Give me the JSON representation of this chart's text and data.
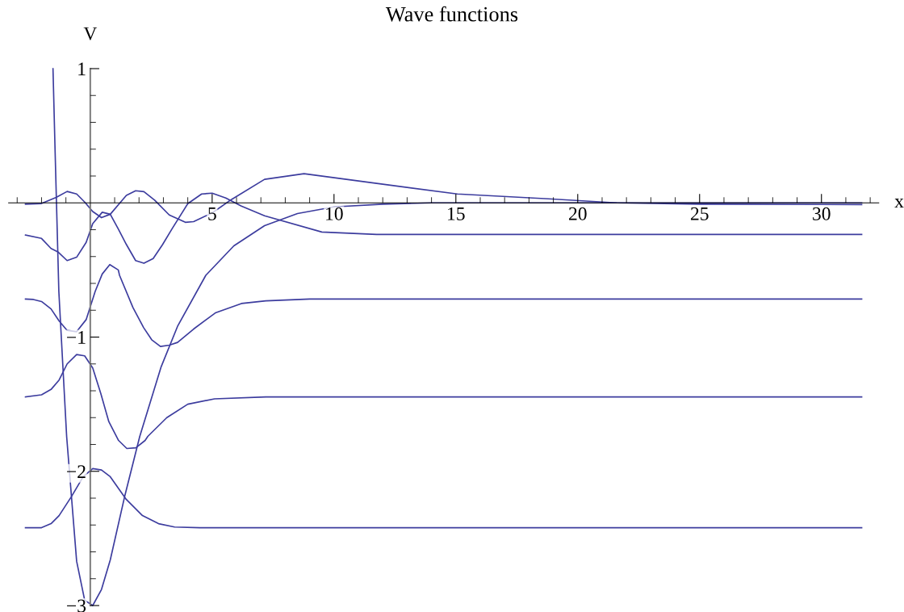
{
  "chart_data": {
    "type": "line",
    "title": "Wave functions",
    "xlabel": "x",
    "ylabel": "V",
    "xlim": [
      -3.35,
      32.35
    ],
    "ylim": [
      -3,
      1
    ],
    "xticks": [
      {
        "value": -3,
        "label": null
      },
      {
        "value": -2,
        "label": null
      },
      {
        "value": -1,
        "label": null
      },
      {
        "value": 1,
        "label": null
      },
      {
        "value": 2,
        "label": null
      },
      {
        "value": 3,
        "label": null
      },
      {
        "value": 4,
        "label": null
      },
      5,
      {
        "value": 6,
        "label": null
      },
      {
        "value": 7,
        "label": null
      },
      {
        "value": 8,
        "label": null
      },
      {
        "value": 9,
        "label": null
      },
      10,
      {
        "value": 11,
        "label": null
      },
      {
        "value": 12,
        "label": null
      },
      {
        "value": 13,
        "label": null
      },
      {
        "value": 14,
        "label": null
      },
      15,
      {
        "value": 16,
        "label": null
      },
      {
        "value": 17,
        "label": null
      },
      {
        "value": 18,
        "label": null
      },
      {
        "value": 19,
        "label": null
      },
      20,
      {
        "value": 21,
        "label": null
      },
      {
        "value": 22,
        "label": null
      },
      {
        "value": 23,
        "label": null
      },
      {
        "value": 24,
        "label": null
      },
      25,
      {
        "value": 26,
        "label": null
      },
      {
        "value": 27,
        "label": null
      },
      {
        "value": 28,
        "label": null
      },
      {
        "value": 29,
        "label": null
      },
      30,
      {
        "value": 31,
        "label": null
      },
      {
        "value": 32,
        "label": null
      }
    ],
    "yticks": [
      {
        "value": -3,
        "label": "−3"
      },
      {
        "value": -2.8,
        "label": null
      },
      {
        "value": -2.6,
        "label": null
      },
      {
        "value": -2.4,
        "label": null
      },
      {
        "value": -2.2,
        "label": null
      },
      {
        "value": -2,
        "label": "−2"
      },
      {
        "value": -1.8,
        "label": null
      },
      {
        "value": -1.6,
        "label": null
      },
      {
        "value": -1.4,
        "label": null
      },
      {
        "value": -1.2,
        "label": null
      },
      {
        "value": -1,
        "label": "−1"
      },
      {
        "value": -0.8,
        "label": null
      },
      {
        "value": -0.6,
        "label": null
      },
      {
        "value": -0.4,
        "label": null
      },
      {
        "value": -0.2,
        "label": null
      },
      {
        "value": 0.2,
        "label": null
      },
      {
        "value": 0.4,
        "label": null
      },
      {
        "value": 0.6,
        "label": null
      },
      {
        "value": 0.8,
        "label": null
      },
      1
    ],
    "grid": false,
    "marker": "none",
    "line_style": "solid",
    "series": [
      {
        "color": "#3c3c9e",
        "x": [
          -1.53,
          -1.45,
          -1.29,
          -0.97,
          -0.56,
          -0.23,
          0.1,
          0.46,
          0.82,
          1.42,
          2.03,
          2.91,
          3.58,
          4.74,
          5.89,
          7.15,
          8.5,
          10,
          12,
          14,
          31.65
        ],
        "values": [
          1,
          0.43,
          -0.66,
          -1.74,
          -2.67,
          -2.96,
          -3.0,
          -2.88,
          -2.66,
          -2.18,
          -1.74,
          -1.22,
          -0.92,
          -0.54,
          -0.32,
          -0.17,
          -0.08,
          -0.03,
          -0.01,
          0,
          0
        ]
      },
      {
        "color": "#3c3c9e",
        "x": [
          -2.66,
          -2.0,
          -1.61,
          -1.28,
          -0.78,
          -0.29,
          0.1,
          0.46,
          0.82,
          1.48,
          2.14,
          2.8,
          3.46,
          4.5,
          31.65
        ],
        "values": [
          -2.42,
          -2.42,
          -2.39,
          -2.33,
          -2.19,
          -2.04,
          -1.98,
          -1.99,
          -2.04,
          -2.21,
          -2.33,
          -2.39,
          -2.415,
          -2.42,
          -2.42
        ]
      },
      {
        "color": "#3c3c9e",
        "x": [
          -2.66,
          -2.0,
          -1.61,
          -1.28,
          -0.95,
          -0.56,
          -0.23,
          0.1,
          0.43,
          0.76,
          1.16,
          1.5,
          1.87,
          2.25,
          2.36,
          3.14,
          4.0,
          5.1,
          7.2,
          31.65
        ],
        "values": [
          -1.446,
          -1.43,
          -1.39,
          -1.32,
          -1.2,
          -1.13,
          -1.14,
          -1.23,
          -1.42,
          -1.63,
          -1.77,
          -1.83,
          -1.825,
          -1.77,
          -1.74,
          -1.6,
          -1.5,
          -1.46,
          -1.446,
          -1.446
        ]
      },
      {
        "color": "#3c3c9e",
        "x": [
          -2.66,
          -2.33,
          -2.0,
          -1.61,
          -1.28,
          -0.95,
          -0.56,
          -0.17,
          0.2,
          0.49,
          0.8,
          1.15,
          1.2,
          1.75,
          2.19,
          2.52,
          2.88,
          3.24,
          3.58,
          4.24,
          5.13,
          6.2,
          7.2,
          9,
          31.65
        ],
        "values": [
          -0.717,
          -0.72,
          -0.735,
          -0.79,
          -0.88,
          -0.95,
          -0.96,
          -0.87,
          -0.66,
          -0.53,
          -0.46,
          -0.5,
          -0.54,
          -0.78,
          -0.93,
          -1.02,
          -1.07,
          -1.06,
          -1.04,
          -0.94,
          -0.82,
          -0.75,
          -0.73,
          -0.717,
          -0.717
        ]
      },
      {
        "color": "#3c3c9e",
        "x": [
          -2.66,
          -2.0,
          -1.61,
          -1.33,
          -0.95,
          -0.56,
          -0.17,
          0.1,
          0.49,
          0.82,
          1.15,
          1.48,
          1.86,
          2.2,
          2.58,
          2.97,
          3.35,
          4.0,
          4.57,
          5.0,
          5.56,
          6.2,
          7.15,
          9.5,
          11.75,
          31.65
        ],
        "values": [
          -0.24,
          -0.265,
          -0.34,
          -0.365,
          -0.43,
          -0.405,
          -0.295,
          -0.155,
          -0.07,
          -0.085,
          -0.195,
          -0.31,
          -0.43,
          -0.45,
          -0.415,
          -0.31,
          -0.195,
          -0.006,
          0.066,
          0.072,
          0.036,
          -0.024,
          -0.096,
          -0.217,
          -0.235,
          -0.235
        ]
      },
      {
        "color": "#3c3c9e",
        "x": [
          -2.66,
          -2.0,
          -1.4,
          -0.95,
          -0.56,
          -0.23,
          0.1,
          0.46,
          0.82,
          1.48,
          1.86,
          2.2,
          2.64,
          3.24,
          3.9,
          4.24,
          5.0,
          5.8,
          7.15,
          8.77,
          11.75,
          15.06,
          18.8,
          21.6,
          25,
          31.65
        ],
        "values": [
          -0.01,
          -0.005,
          0.04,
          0.085,
          0.066,
          0.006,
          -0.065,
          -0.11,
          -0.085,
          0.056,
          0.09,
          0.083,
          0.02,
          -0.09,
          -0.145,
          -0.14,
          -0.075,
          0.026,
          0.175,
          0.217,
          0.145,
          0.066,
          0.03,
          0,
          -0.01,
          -0.013
        ]
      }
    ]
  }
}
